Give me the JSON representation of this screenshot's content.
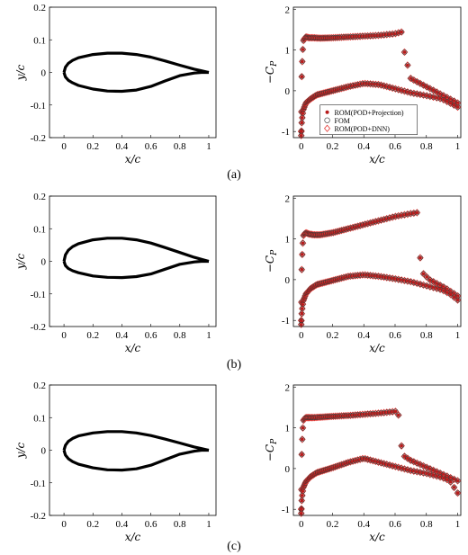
{
  "chart_data": [
    {
      "type": "line",
      "panel": "a-left",
      "xlabel": "x/c",
      "ylabel": "y/c",
      "xlim": [
        -0.1,
        1.05
      ],
      "ylim": [
        -0.2,
        0.2
      ],
      "xticks": [
        "0",
        "0.2",
        "0.4",
        "0.6",
        "0.8",
        "1"
      ],
      "yticks": [
        "-0.2",
        "-0.1",
        "0",
        "0.1",
        "0.2"
      ],
      "series": [
        {
          "x": [
            0,
            0.01,
            0.03,
            0.06,
            0.1,
            0.2,
            0.3,
            0.4,
            0.5,
            0.6,
            0.7,
            0.8,
            0.9,
            0.95,
            1.0
          ],
          "y": [
            0,
            0.016,
            0.028,
            0.037,
            0.045,
            0.055,
            0.059,
            0.059,
            0.055,
            0.047,
            0.035,
            0.022,
            0.01,
            0.005,
            0
          ]
        },
        {
          "x": [
            0,
            0.01,
            0.03,
            0.06,
            0.1,
            0.2,
            0.3,
            0.4,
            0.5,
            0.6,
            0.7,
            0.8,
            0.9,
            0.95,
            1.0
          ],
          "y": [
            0,
            -0.014,
            -0.024,
            -0.032,
            -0.04,
            -0.051,
            -0.057,
            -0.058,
            -0.054,
            -0.043,
            -0.026,
            -0.01,
            -0.002,
            0,
            0
          ]
        }
      ]
    },
    {
      "type": "scatter",
      "panel": "a-right",
      "xlabel": "x/c",
      "ylabel": "-C_P",
      "xlim": [
        -0.05,
        1.02
      ],
      "ylim": [
        -1.15,
        2.05
      ],
      "xticks": [
        "0",
        "0.2",
        "0.4",
        "0.6",
        "0.8",
        "1"
      ],
      "yticks": [
        "-1",
        "0",
        "1",
        "2"
      ],
      "legend": [
        "ROM(POD+Projection)",
        "FOM",
        "ROM(POD+DNN)"
      ],
      "legend_position": "inside",
      "shock_x": 0.65,
      "upper": {
        "x": [
          0,
          0.003,
          0.008,
          0.015,
          0.03,
          0.05,
          0.08,
          0.12,
          0.2,
          0.3,
          0.4,
          0.5,
          0.6,
          0.65,
          0.66,
          0.7,
          0.75,
          0.8,
          0.85,
          0.9,
          0.95,
          1.0
        ],
        "y": [
          -1,
          0.3,
          0.9,
          1.25,
          1.32,
          1.3,
          1.3,
          1.29,
          1.3,
          1.32,
          1.34,
          1.36,
          1.4,
          1.45,
          0.95,
          0.3,
          0.2,
          0.1,
          0.0,
          -0.1,
          -0.2,
          -0.3
        ]
      },
      "lower": {
        "x": [
          0,
          0.003,
          0.008,
          0.015,
          0.03,
          0.06,
          0.1,
          0.2,
          0.3,
          0.4,
          0.5,
          0.6,
          0.7,
          0.8,
          0.9,
          0.95,
          1.0
        ],
        "y": [
          -1.1,
          -0.8,
          -0.6,
          -0.45,
          -0.3,
          -0.2,
          -0.1,
          0.0,
          0.1,
          0.18,
          0.15,
          0.05,
          -0.05,
          -0.12,
          -0.2,
          -0.3,
          -0.4
        ]
      }
    },
    {
      "type": "line",
      "panel": "b-left",
      "xlabel": "x/c",
      "ylabel": "y/c",
      "xlim": [
        -0.1,
        1.05
      ],
      "ylim": [
        -0.2,
        0.2
      ],
      "xticks": [
        "0",
        "0.2",
        "0.4",
        "0.6",
        "0.8",
        "1"
      ],
      "yticks": [
        "-0.2",
        "-0.1",
        "0",
        "0.1",
        "0.2"
      ],
      "series": [
        {
          "x": [
            0,
            0.01,
            0.03,
            0.06,
            0.1,
            0.2,
            0.3,
            0.4,
            0.5,
            0.6,
            0.7,
            0.8,
            0.9,
            0.95,
            1.0
          ],
          "y": [
            0,
            0.02,
            0.034,
            0.045,
            0.054,
            0.066,
            0.071,
            0.071,
            0.066,
            0.056,
            0.042,
            0.027,
            0.012,
            0.006,
            0
          ]
        },
        {
          "x": [
            0,
            0.01,
            0.03,
            0.06,
            0.1,
            0.2,
            0.3,
            0.4,
            0.5,
            0.6,
            0.7,
            0.8,
            0.9,
            0.95,
            1.0
          ],
          "y": [
            0,
            -0.013,
            -0.022,
            -0.029,
            -0.035,
            -0.045,
            -0.049,
            -0.05,
            -0.047,
            -0.039,
            -0.024,
            -0.009,
            -0.002,
            0,
            0
          ]
        }
      ]
    },
    {
      "type": "scatter",
      "panel": "b-right",
      "xlabel": "x/c",
      "ylabel": "-C_P",
      "xlim": [
        -0.05,
        1.02
      ],
      "ylim": [
        -1.15,
        2.05
      ],
      "xticks": [
        "0",
        "0.2",
        "0.4",
        "0.6",
        "0.8",
        "1"
      ],
      "yticks": [
        "-1",
        "0",
        "1",
        "2"
      ],
      "shock_x": 0.75,
      "upper": {
        "x": [
          0,
          0.003,
          0.008,
          0.015,
          0.03,
          0.05,
          0.08,
          0.12,
          0.2,
          0.3,
          0.4,
          0.5,
          0.6,
          0.7,
          0.75,
          0.76,
          0.78,
          0.82,
          0.87,
          0.92,
          0.96,
          1.0
        ],
        "y": [
          -1,
          0.2,
          0.8,
          1.1,
          1.15,
          1.12,
          1.1,
          1.1,
          1.15,
          1.25,
          1.35,
          1.45,
          1.55,
          1.62,
          1.65,
          0.55,
          0.15,
          0.0,
          -0.1,
          -0.2,
          -0.3,
          -0.4
        ]
      },
      "lower": {
        "x": [
          0,
          0.003,
          0.008,
          0.015,
          0.03,
          0.06,
          0.1,
          0.2,
          0.3,
          0.4,
          0.5,
          0.6,
          0.7,
          0.8,
          0.9,
          0.95,
          1.0
        ],
        "y": [
          -1.1,
          -0.85,
          -0.65,
          -0.5,
          -0.35,
          -0.22,
          -0.12,
          -0.02,
          0.08,
          0.12,
          0.08,
          0.02,
          -0.05,
          -0.15,
          -0.25,
          -0.35,
          -0.5
        ]
      }
    },
    {
      "type": "line",
      "panel": "c-left",
      "xlabel": "x/c",
      "ylabel": "y/c",
      "xlim": [
        -0.1,
        1.05
      ],
      "ylim": [
        -0.2,
        0.2
      ],
      "xticks": [
        "0",
        "0.2",
        "0.4",
        "0.6",
        "0.8",
        "1"
      ],
      "yticks": [
        "-0.2",
        "-0.1",
        "0",
        "0.1",
        "0.2"
      ],
      "series": [
        {
          "x": [
            0,
            0.01,
            0.03,
            0.06,
            0.1,
            0.2,
            0.3,
            0.4,
            0.5,
            0.6,
            0.7,
            0.8,
            0.9,
            0.95,
            1.0
          ],
          "y": [
            0,
            0.015,
            0.027,
            0.036,
            0.044,
            0.053,
            0.057,
            0.057,
            0.053,
            0.045,
            0.034,
            0.022,
            0.01,
            0.005,
            0
          ]
        },
        {
          "x": [
            0,
            0.01,
            0.03,
            0.06,
            0.1,
            0.2,
            0.3,
            0.4,
            0.5,
            0.6,
            0.7,
            0.8,
            0.9,
            0.95,
            1.0
          ],
          "y": [
            0,
            -0.015,
            -0.026,
            -0.035,
            -0.043,
            -0.054,
            -0.06,
            -0.061,
            -0.057,
            -0.046,
            -0.029,
            -0.012,
            -0.003,
            0,
            0
          ]
        }
      ]
    },
    {
      "type": "scatter",
      "panel": "c-right",
      "xlabel": "x/c",
      "ylabel": "-C_P",
      "xlim": [
        -0.05,
        1.02
      ],
      "ylim": [
        -1.15,
        2.05
      ],
      "xticks": [
        "0",
        "0.2",
        "0.4",
        "0.6",
        "0.8",
        "1"
      ],
      "yticks": [
        "-1",
        "0",
        "1",
        "2"
      ],
      "shock_x": 0.62,
      "upper": {
        "x": [
          0,
          0.003,
          0.008,
          0.015,
          0.03,
          0.05,
          0.08,
          0.12,
          0.2,
          0.3,
          0.4,
          0.5,
          0.6,
          0.62,
          0.63,
          0.66,
          0.7,
          0.76,
          0.82,
          0.88,
          0.94,
          1.0
        ],
        "y": [
          -1,
          0.3,
          0.9,
          1.2,
          1.25,
          1.25,
          1.25,
          1.26,
          1.28,
          1.3,
          1.33,
          1.36,
          1.4,
          1.42,
          0.7,
          0.3,
          0.2,
          0.1,
          0.0,
          -0.1,
          -0.2,
          -0.3
        ]
      },
      "lower": {
        "x": [
          0,
          0.003,
          0.008,
          0.015,
          0.03,
          0.06,
          0.1,
          0.2,
          0.3,
          0.4,
          0.5,
          0.6,
          0.7,
          0.8,
          0.9,
          0.95,
          1.0
        ],
        "y": [
          -1.1,
          -0.8,
          -0.6,
          -0.45,
          -0.32,
          -0.2,
          -0.1,
          0.02,
          0.15,
          0.25,
          0.15,
          0.05,
          -0.05,
          -0.12,
          -0.22,
          -0.3,
          -0.6
        ]
      }
    }
  ],
  "captions": [
    "(a)",
    "(b)",
    "(c)"
  ],
  "colors": {
    "rom_projection": "#b71c1c",
    "fom": "#333333",
    "rom_dnn": "#e53935"
  }
}
